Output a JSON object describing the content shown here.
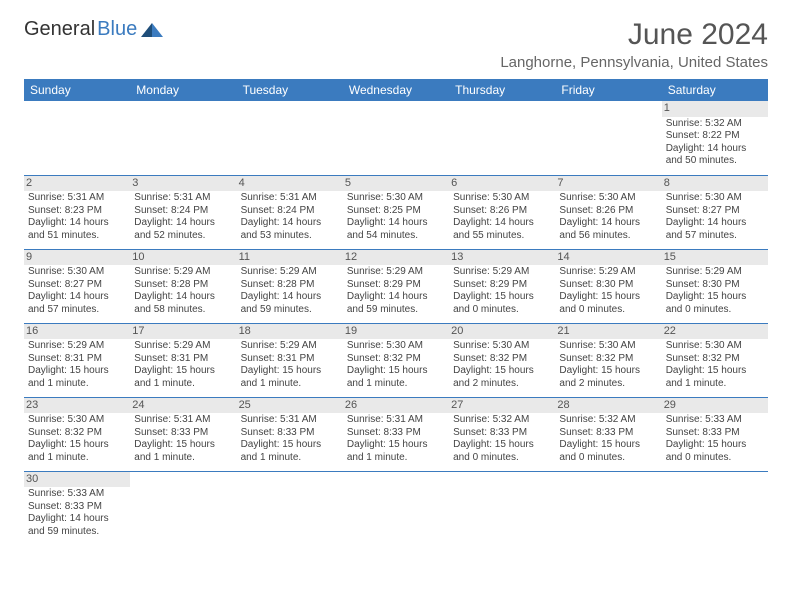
{
  "logo": {
    "part1": "General",
    "part2": "Blue"
  },
  "title": "June 2024",
  "location": "Langhorne, Pennsylvania, United States",
  "colors": {
    "header_bg": "#3b7bbf",
    "header_text": "#ffffff",
    "daynum_bg": "#e9e9e9",
    "text": "#444444",
    "row_border": "#3b7bbf"
  },
  "dayNames": [
    "Sunday",
    "Monday",
    "Tuesday",
    "Wednesday",
    "Thursday",
    "Friday",
    "Saturday"
  ],
  "weeks": [
    [
      {
        "empty": true
      },
      {
        "empty": true
      },
      {
        "empty": true
      },
      {
        "empty": true
      },
      {
        "empty": true
      },
      {
        "empty": true
      },
      {
        "n": "1",
        "sunrise": "Sunrise: 5:32 AM",
        "sunset": "Sunset: 8:22 PM",
        "daylight": "Daylight: 14 hours and 50 minutes."
      }
    ],
    [
      {
        "n": "2",
        "sunrise": "Sunrise: 5:31 AM",
        "sunset": "Sunset: 8:23 PM",
        "daylight": "Daylight: 14 hours and 51 minutes."
      },
      {
        "n": "3",
        "sunrise": "Sunrise: 5:31 AM",
        "sunset": "Sunset: 8:24 PM",
        "daylight": "Daylight: 14 hours and 52 minutes."
      },
      {
        "n": "4",
        "sunrise": "Sunrise: 5:31 AM",
        "sunset": "Sunset: 8:24 PM",
        "daylight": "Daylight: 14 hours and 53 minutes."
      },
      {
        "n": "5",
        "sunrise": "Sunrise: 5:30 AM",
        "sunset": "Sunset: 8:25 PM",
        "daylight": "Daylight: 14 hours and 54 minutes."
      },
      {
        "n": "6",
        "sunrise": "Sunrise: 5:30 AM",
        "sunset": "Sunset: 8:26 PM",
        "daylight": "Daylight: 14 hours and 55 minutes."
      },
      {
        "n": "7",
        "sunrise": "Sunrise: 5:30 AM",
        "sunset": "Sunset: 8:26 PM",
        "daylight": "Daylight: 14 hours and 56 minutes."
      },
      {
        "n": "8",
        "sunrise": "Sunrise: 5:30 AM",
        "sunset": "Sunset: 8:27 PM",
        "daylight": "Daylight: 14 hours and 57 minutes."
      }
    ],
    [
      {
        "n": "9",
        "sunrise": "Sunrise: 5:30 AM",
        "sunset": "Sunset: 8:27 PM",
        "daylight": "Daylight: 14 hours and 57 minutes."
      },
      {
        "n": "10",
        "sunrise": "Sunrise: 5:29 AM",
        "sunset": "Sunset: 8:28 PM",
        "daylight": "Daylight: 14 hours and 58 minutes."
      },
      {
        "n": "11",
        "sunrise": "Sunrise: 5:29 AM",
        "sunset": "Sunset: 8:28 PM",
        "daylight": "Daylight: 14 hours and 59 minutes."
      },
      {
        "n": "12",
        "sunrise": "Sunrise: 5:29 AM",
        "sunset": "Sunset: 8:29 PM",
        "daylight": "Daylight: 14 hours and 59 minutes."
      },
      {
        "n": "13",
        "sunrise": "Sunrise: 5:29 AM",
        "sunset": "Sunset: 8:29 PM",
        "daylight": "Daylight: 15 hours and 0 minutes."
      },
      {
        "n": "14",
        "sunrise": "Sunrise: 5:29 AM",
        "sunset": "Sunset: 8:30 PM",
        "daylight": "Daylight: 15 hours and 0 minutes."
      },
      {
        "n": "15",
        "sunrise": "Sunrise: 5:29 AM",
        "sunset": "Sunset: 8:30 PM",
        "daylight": "Daylight: 15 hours and 0 minutes."
      }
    ],
    [
      {
        "n": "16",
        "sunrise": "Sunrise: 5:29 AM",
        "sunset": "Sunset: 8:31 PM",
        "daylight": "Daylight: 15 hours and 1 minute."
      },
      {
        "n": "17",
        "sunrise": "Sunrise: 5:29 AM",
        "sunset": "Sunset: 8:31 PM",
        "daylight": "Daylight: 15 hours and 1 minute."
      },
      {
        "n": "18",
        "sunrise": "Sunrise: 5:29 AM",
        "sunset": "Sunset: 8:31 PM",
        "daylight": "Daylight: 15 hours and 1 minute."
      },
      {
        "n": "19",
        "sunrise": "Sunrise: 5:30 AM",
        "sunset": "Sunset: 8:32 PM",
        "daylight": "Daylight: 15 hours and 1 minute."
      },
      {
        "n": "20",
        "sunrise": "Sunrise: 5:30 AM",
        "sunset": "Sunset: 8:32 PM",
        "daylight": "Daylight: 15 hours and 2 minutes."
      },
      {
        "n": "21",
        "sunrise": "Sunrise: 5:30 AM",
        "sunset": "Sunset: 8:32 PM",
        "daylight": "Daylight: 15 hours and 2 minutes."
      },
      {
        "n": "22",
        "sunrise": "Sunrise: 5:30 AM",
        "sunset": "Sunset: 8:32 PM",
        "daylight": "Daylight: 15 hours and 1 minute."
      }
    ],
    [
      {
        "n": "23",
        "sunrise": "Sunrise: 5:30 AM",
        "sunset": "Sunset: 8:32 PM",
        "daylight": "Daylight: 15 hours and 1 minute."
      },
      {
        "n": "24",
        "sunrise": "Sunrise: 5:31 AM",
        "sunset": "Sunset: 8:33 PM",
        "daylight": "Daylight: 15 hours and 1 minute."
      },
      {
        "n": "25",
        "sunrise": "Sunrise: 5:31 AM",
        "sunset": "Sunset: 8:33 PM",
        "daylight": "Daylight: 15 hours and 1 minute."
      },
      {
        "n": "26",
        "sunrise": "Sunrise: 5:31 AM",
        "sunset": "Sunset: 8:33 PM",
        "daylight": "Daylight: 15 hours and 1 minute."
      },
      {
        "n": "27",
        "sunrise": "Sunrise: 5:32 AM",
        "sunset": "Sunset: 8:33 PM",
        "daylight": "Daylight: 15 hours and 0 minutes."
      },
      {
        "n": "28",
        "sunrise": "Sunrise: 5:32 AM",
        "sunset": "Sunset: 8:33 PM",
        "daylight": "Daylight: 15 hours and 0 minutes."
      },
      {
        "n": "29",
        "sunrise": "Sunrise: 5:33 AM",
        "sunset": "Sunset: 8:33 PM",
        "daylight": "Daylight: 15 hours and 0 minutes."
      }
    ],
    [
      {
        "n": "30",
        "sunrise": "Sunrise: 5:33 AM",
        "sunset": "Sunset: 8:33 PM",
        "daylight": "Daylight: 14 hours and 59 minutes."
      },
      {
        "empty": true
      },
      {
        "empty": true
      },
      {
        "empty": true
      },
      {
        "empty": true
      },
      {
        "empty": true
      },
      {
        "empty": true
      }
    ]
  ]
}
